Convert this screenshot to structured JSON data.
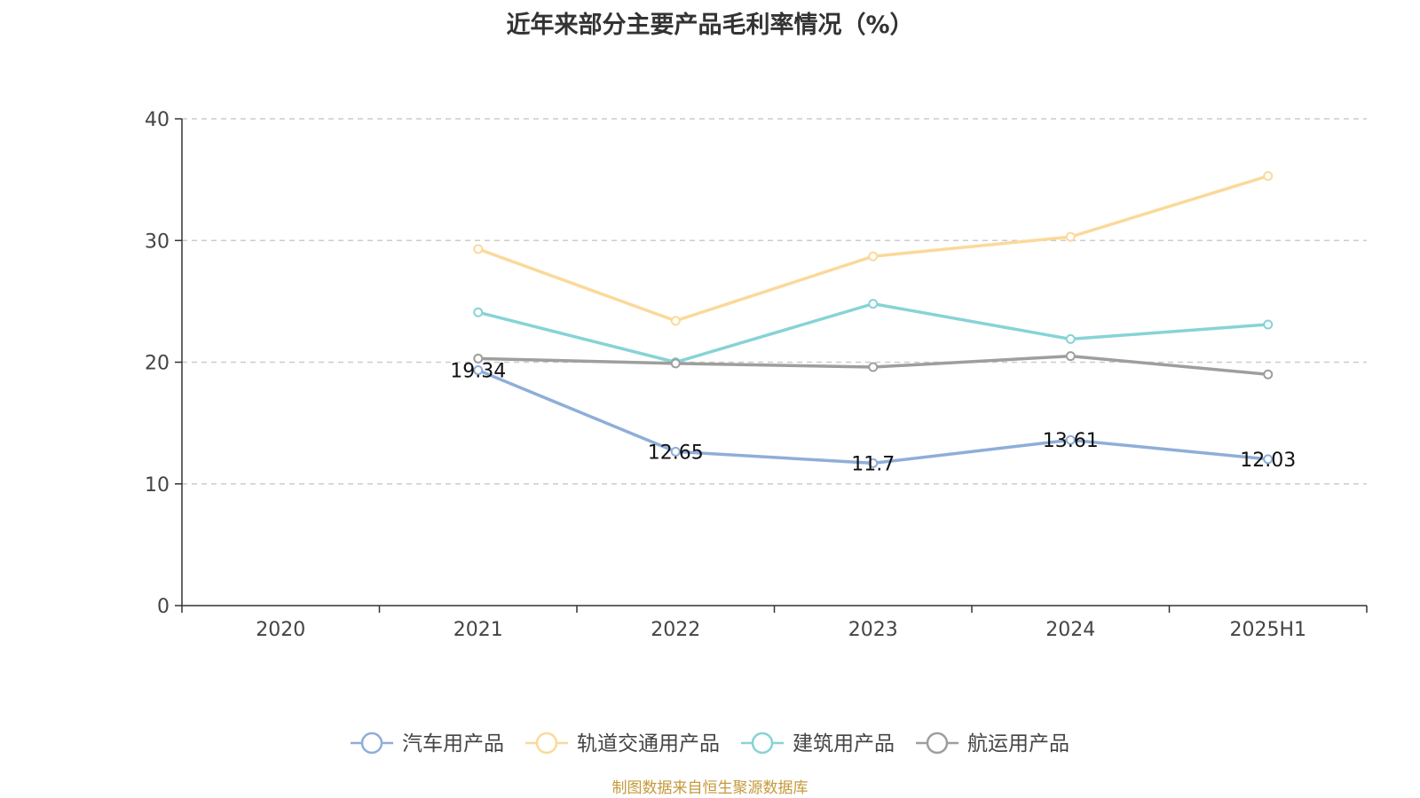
{
  "title": "近年来部分主要产品毛利率情况（%）",
  "source": "制图数据来自恒生聚源数据库",
  "chart_data": {
    "type": "line",
    "title": "近年来部分主要产品毛利率情况（%）",
    "categories": [
      "2020",
      "2021",
      "2022",
      "2023",
      "2024",
      "2025H1"
    ],
    "ylim": [
      0,
      40
    ],
    "yticks": [
      0,
      10,
      20,
      30,
      40
    ],
    "grid": true,
    "legend_position": "bottom",
    "series": [
      {
        "name": "汽车用产品",
        "color": "#8eaed9",
        "values": [
          null,
          19.34,
          12.65,
          11.7,
          13.61,
          12.03
        ],
        "labels": [
          null,
          "19.34",
          "12.65",
          "11.7",
          "13.61",
          "12.03"
        ]
      },
      {
        "name": "轨道交通用产品",
        "color": "#fbd99a",
        "values": [
          null,
          29.3,
          23.4,
          28.7,
          30.3,
          35.3
        ],
        "labels": [
          null,
          null,
          null,
          null,
          null,
          null
        ]
      },
      {
        "name": "建筑用产品",
        "color": "#87d3d6",
        "values": [
          null,
          24.1,
          20.0,
          24.8,
          21.9,
          23.1
        ],
        "labels": [
          null,
          null,
          null,
          null,
          null,
          null
        ]
      },
      {
        "name": "航运用产品",
        "color": "#9e9e9e",
        "values": [
          null,
          20.3,
          19.9,
          19.6,
          20.5,
          19.0
        ],
        "labels": [
          null,
          null,
          null,
          null,
          null,
          null
        ]
      }
    ]
  }
}
